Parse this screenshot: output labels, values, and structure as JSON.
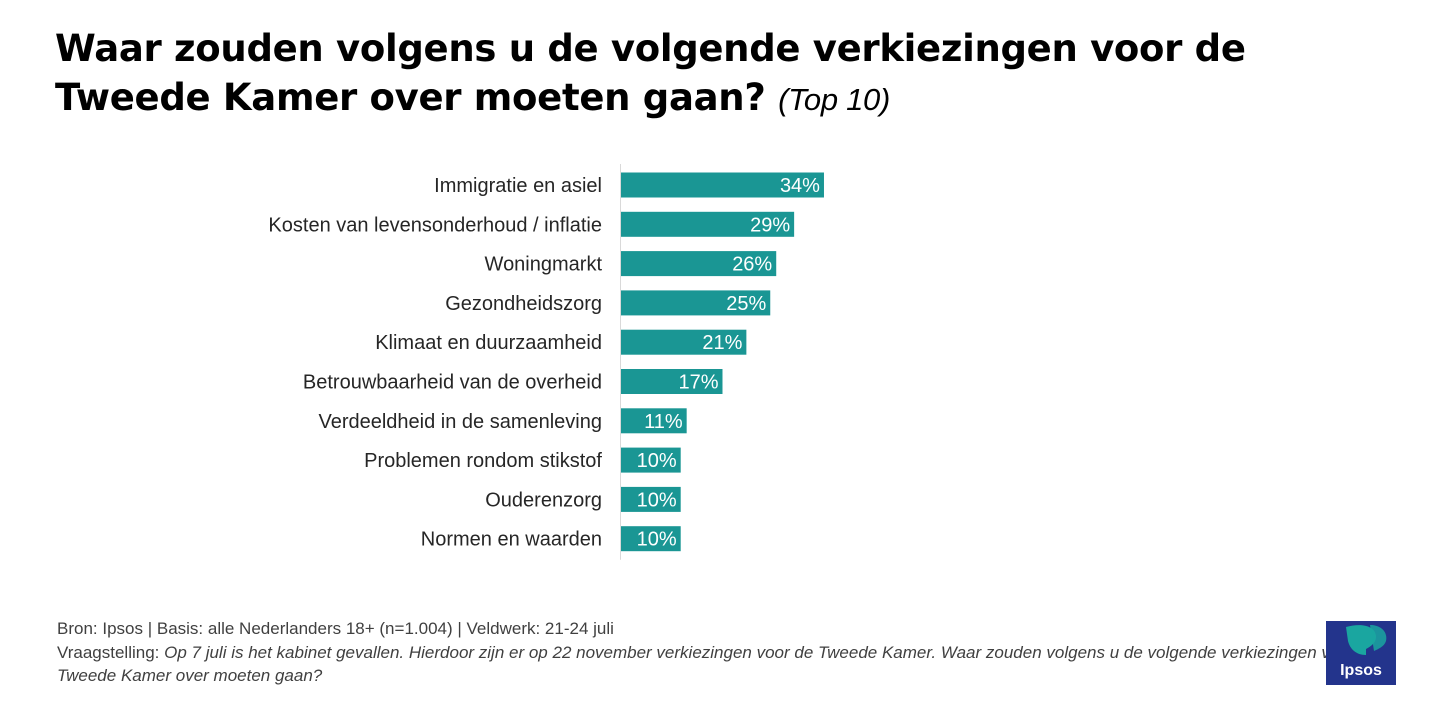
{
  "colors": {
    "bar": "#1a9694",
    "logo_bg": "#23348c",
    "logo_accent": "#1aa6a0"
  },
  "header": {
    "title": "Waar zouden volgens u de volgende verkiezingen voor de Tweede Kamer over moeten gaan?",
    "subtitle": "(Top 10)"
  },
  "chart_data": {
    "type": "bar",
    "orientation": "horizontal",
    "categories": [
      "Immigratie en asiel",
      "Kosten van levensonderhoud / inflatie",
      "Woningmarkt",
      "Gezondheidszorg",
      "Klimaat en duurzaamheid",
      "Betrouwbaarheid van de overheid",
      "Verdeeldheid in de samenleving",
      "Problemen rondom stikstof",
      "Ouderenzorg",
      "Normen en waarden"
    ],
    "values": [
      34,
      29,
      26,
      25,
      21,
      17,
      11,
      10,
      10,
      10
    ],
    "value_labels": [
      "34%",
      "29%",
      "26%",
      "25%",
      "21%",
      "17%",
      "11%",
      "10%",
      "10%",
      "10%"
    ],
    "grid": false,
    "legend": "none"
  },
  "footer": {
    "source": "Bron: Ipsos | Basis: alle Nederlanders  18+ (n=1.004) | Veldwerk: 21-24 juli",
    "question_label": "Vraagstelling:",
    "question_text": "Op 7 juli is het kabinet gevallen. Hierdoor zijn er op 22 november verkiezingen voor de Tweede Kamer. Waar zouden volgens u de volgende verkiezingen voor de Tweede Kamer over moeten gaan?"
  },
  "logo": {
    "text": "Ipsos"
  }
}
